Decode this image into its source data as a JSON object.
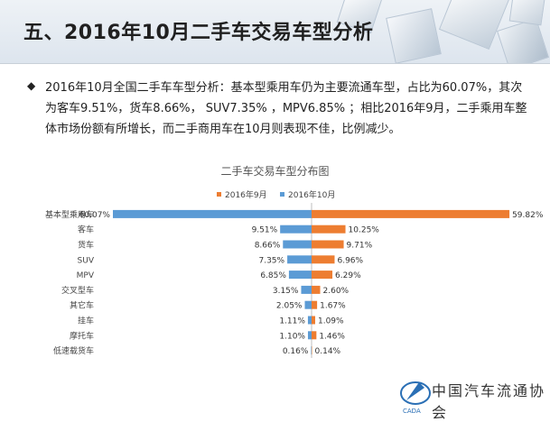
{
  "slide": {
    "title": "五、2016年10月二手车交易车型分析",
    "bullet_icon": "diamond-icon",
    "bullet_text": "2016年10月全国二手车车型分析：基本型乘用车仍为主要流通车型，占比为60.07%，其次为客车9.51%，货车8.66%， SUV7.35% ，MPV6.85% ；相比2016年9月，二手乘用车整体市场份额有所增长，而二手商用车在10月则表现不佳，比例减少。"
  },
  "chart_data": {
    "type": "bar",
    "orientation": "horizontal-butterfly",
    "title": "二手车交易车型分布图",
    "categories": [
      "基本型乘用车",
      "客车",
      "货车",
      "SUV",
      "MPV",
      "交叉型车",
      "其它车",
      "挂车",
      "摩托车",
      "低速载货车"
    ],
    "series": [
      {
        "name": "2016年10月",
        "side": "left",
        "color": "#5b9bd5",
        "values": [
          60.07,
          9.51,
          8.66,
          7.35,
          6.85,
          3.15,
          2.05,
          1.11,
          1.1,
          0.16
        ],
        "labels": [
          "60.07%",
          "9.51%",
          "8.66%",
          "7.35%",
          "6.85%",
          "3.15%",
          "2.05%",
          "1.11%",
          "1.10%",
          "0.16%"
        ]
      },
      {
        "name": "2016年9月",
        "side": "right",
        "color": "#ed7d31",
        "values": [
          59.82,
          10.25,
          9.71,
          6.96,
          6.29,
          2.6,
          1.67,
          1.09,
          1.46,
          0.14
        ],
        "labels": [
          "59.82%",
          "10.25%",
          "9.71%",
          "6.96%",
          "6.29%",
          "2.60%",
          "1.67%",
          "1.09%",
          "1.46%",
          "0.14%"
        ]
      }
    ],
    "legend_order": [
      "2016年9月",
      "2016年10月"
    ],
    "legend_position": "top-center",
    "grid": false
  },
  "footer": {
    "logo_icon": "association-logo-icon",
    "logo_text": "中国汽车流通协会",
    "logo_caption": "CADA"
  }
}
